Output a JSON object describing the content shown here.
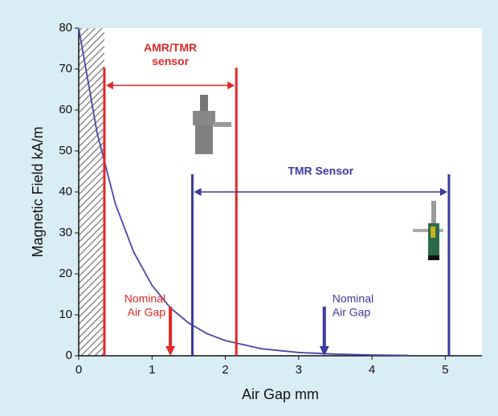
{
  "chart_data": {
    "type": "line",
    "x_label": "Air Gap   mm",
    "y_label": "Magnetic Field   kA/m",
    "x": [
      0,
      0.25,
      0.5,
      0.75,
      1,
      1.25,
      1.5,
      1.75,
      2,
      2.5,
      3,
      3.5,
      4,
      4.5
    ],
    "series": [
      {
        "color": "#4848a8",
        "values": [
          80,
          54.5,
          37.1,
          25.3,
          17.2,
          11.7,
          8.0,
          5.4,
          3.7,
          1.7,
          0.8,
          0.4,
          0.2,
          0.1
        ]
      }
    ],
    "xlim": [
      0,
      5.5
    ],
    "ylim": [
      0,
      80
    ],
    "xticks": [
      0,
      1,
      2,
      3,
      4,
      5
    ],
    "yticks": [
      0,
      10,
      20,
      30,
      40,
      50,
      60,
      70,
      80
    ],
    "grid": false,
    "ranges": [
      {
        "label": [
          "AMR/TMR",
          "sensor"
        ],
        "color": "#e02828",
        "x": [
          0.35,
          2.15
        ],
        "y": 66
      },
      {
        "label": [
          "TMR Sensor"
        ],
        "color": "#3a3aa0",
        "x": [
          1.55,
          5.05
        ],
        "y": 40
      }
    ],
    "nominal": [
      {
        "label": [
          "Nominal",
          "Air Gap"
        ],
        "color": "#e02828",
        "x": 1.25,
        "y": [
          12,
          0
        ]
      },
      {
        "label": [
          "Nominal",
          "Air Gap"
        ],
        "color": "#3a3aa0",
        "x": 3.35,
        "y": [
          12,
          0
        ]
      }
    ]
  }
}
